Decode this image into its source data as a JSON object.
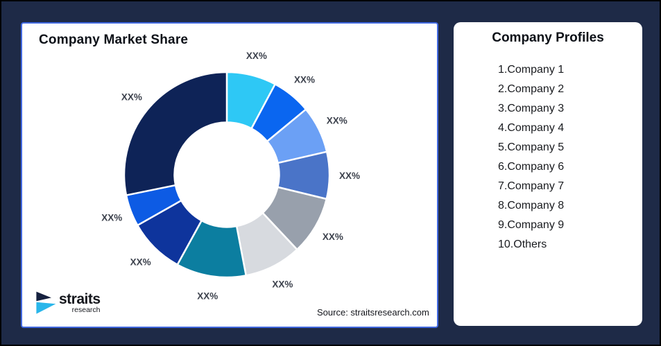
{
  "frame": {
    "background_color": "#1e2a47",
    "border_color": "#000000"
  },
  "left_card": {
    "title": "Company Market Share",
    "border_color": "#4169e1",
    "source": "Source: straitsresearch.com",
    "logo": {
      "brand": "straits",
      "sub": "research",
      "icon_navy": "#16213f",
      "icon_cyan": "#29b6ea"
    }
  },
  "right_card": {
    "title": "Company Profiles",
    "items": [
      "1.Company 1",
      "2.Company 2",
      "3.Company 3",
      "4.Company 4",
      "5.Company 5",
      "6.Company 6",
      "7.Company 7",
      "8.Company 8",
      "9.Company 9",
      "10.Others"
    ]
  },
  "chart_data": {
    "type": "pie",
    "subtype": "donut",
    "title": "Company Market Share",
    "start_angle_deg": 0,
    "direction": "clockwise",
    "inner_radius_ratio": 0.51,
    "label_color": "#3d424d",
    "slice_gap_color": "#ffffff",
    "segments": [
      {
        "label": "XX%",
        "value": 7.8,
        "color": "#2EC8F5"
      },
      {
        "label": "XX%",
        "value": 6.2,
        "color": "#0A66F0"
      },
      {
        "label": "XX%",
        "value": 7.4,
        "color": "#6BA0F5"
      },
      {
        "label": "XX%",
        "value": 7.4,
        "color": "#4A74C8"
      },
      {
        "label": "XX%",
        "value": 9.2,
        "color": "#98A0AC"
      },
      {
        "label": "XX%",
        "value": 9.0,
        "color": "#D7DADF"
      },
      {
        "label": "XX%",
        "value": 11.0,
        "color": "#0C7EA0"
      },
      {
        "label": "XX%",
        "value": 8.8,
        "color": "#0E349C"
      },
      {
        "label": "XX%",
        "value": 5.0,
        "color": "#0D5BE4"
      },
      {
        "label": "XX%",
        "value": 28.2,
        "color": "#0E2357"
      }
    ]
  }
}
